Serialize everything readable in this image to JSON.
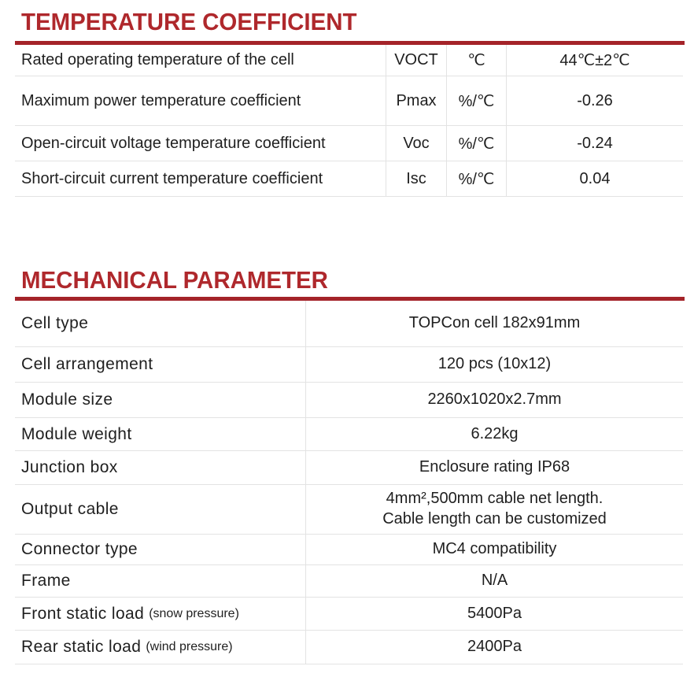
{
  "page": {
    "accent_text_red": "#af282c",
    "accent_bar_red": "#a42329",
    "separator_gray": "#e3e3e3"
  },
  "temperature_section": {
    "title": "TEMPERATURE COEFFICIENT",
    "rows": [
      {
        "label": "Rated operating temperature of the cell",
        "symbol": "VOCT",
        "unit": "℃",
        "value": "44℃±2℃"
      },
      {
        "label": "Maximum power temperature coefficient",
        "symbol": "Pmax",
        "unit": "%/℃",
        "value": "-0.26"
      },
      {
        "label": "Open-circuit voltage temperature coefficient",
        "symbol": "Voc",
        "unit": "%/℃",
        "value": "-0.24"
      },
      {
        "label": "Short-circuit current temperature coefficient",
        "symbol": "Isc",
        "unit": "%/℃",
        "value": "0.04"
      }
    ]
  },
  "mechanical_section": {
    "title": "MECHANICAL PARAMETER",
    "rows": [
      {
        "label": "Cell type",
        "note": "",
        "value": "TOPCon cell 182x91mm"
      },
      {
        "label": "Cell arrangement",
        "note": "",
        "value": "120 pcs (10x12)"
      },
      {
        "label": "Module size",
        "note": "",
        "value": "2260x1020x2.7mm"
      },
      {
        "label": "Module weight",
        "note": "",
        "value": "6.22kg"
      },
      {
        "label": "Junction box",
        "note": "",
        "value": "Enclosure rating IP68"
      },
      {
        "label": "Output cable",
        "note": "",
        "value": "4mm²,500mm cable net length.\nCable length can be customized"
      },
      {
        "label": "Connector type",
        "note": "",
        "value": "MC4 compatibility"
      },
      {
        "label": "Frame",
        "note": "",
        "value": "N/A"
      },
      {
        "label": "Front static load",
        "note": "(snow pressure)",
        "value": "5400Pa"
      },
      {
        "label": "Rear static load",
        "note": "(wind pressure)",
        "value": "2400Pa"
      }
    ]
  }
}
